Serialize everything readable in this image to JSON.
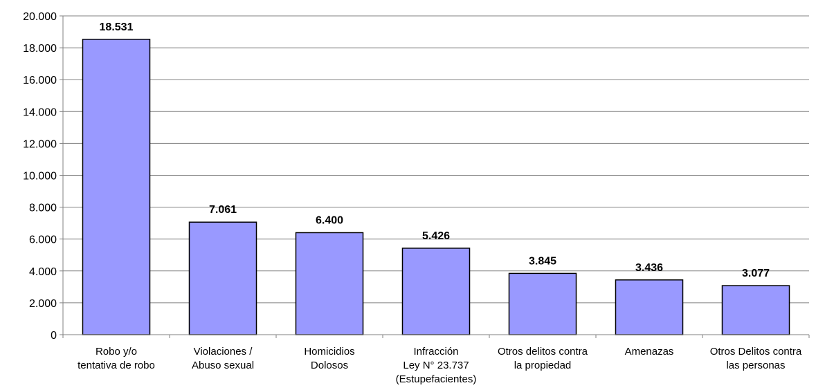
{
  "chart_data": {
    "type": "bar",
    "categories": [
      [
        "Robo y/o",
        "tentativa de robo"
      ],
      [
        "Violaciones /",
        "Abuso sexual"
      ],
      [
        "Homicidios",
        "Dolosos"
      ],
      [
        "Infracción",
        "Ley N° 23.737",
        "(Estupefacientes)"
      ],
      [
        "Otros delitos contra",
        "la propiedad"
      ],
      [
        "Amenazas"
      ],
      [
        "Otros Delitos contra",
        "las personas"
      ]
    ],
    "values": [
      18531,
      7061,
      6400,
      5426,
      3845,
      3436,
      3077
    ],
    "value_labels": [
      "18.531",
      "7.061",
      "6.400",
      "5.426",
      "3.845",
      "3.436",
      "3.077"
    ],
    "yticks": [
      0,
      2000,
      4000,
      6000,
      8000,
      10000,
      12000,
      14000,
      16000,
      18000,
      20000
    ],
    "ytick_labels": [
      "0",
      "2.000",
      "4.000",
      "6.000",
      "8.000",
      "10.000",
      "12.000",
      "14.000",
      "16.000",
      "18.000",
      "20.000"
    ],
    "ylim": [
      0,
      20000
    ],
    "grid": true,
    "legend": "none",
    "colors": {
      "bar_fill": "#9999ff",
      "bar_stroke": "#000000",
      "grid": "#808080",
      "axis": "#808080"
    }
  }
}
